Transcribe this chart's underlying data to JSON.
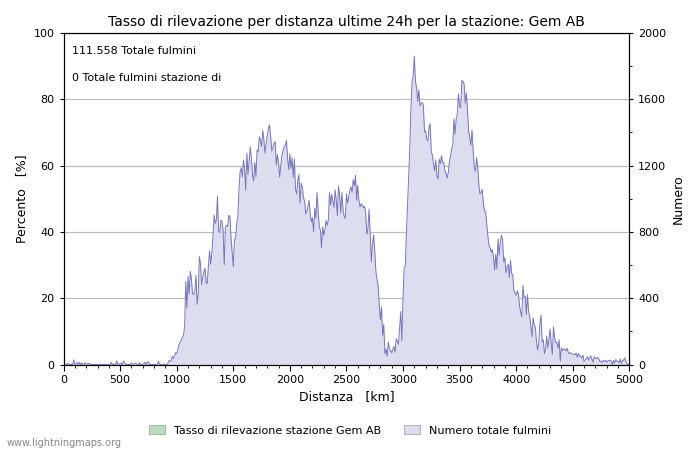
{
  "title": "Tasso di rilevazione per distanza ultime 24h per la stazione: Gem AB",
  "xlabel": "Distanza   [km]",
  "ylabel_left": "Percento   [%]",
  "ylabel_right": "Numero",
  "annotation_line1": "111.558 Totale fulmini",
  "annotation_line2": "0 Totale fulmini stazione di",
  "xlim": [
    0,
    5000
  ],
  "ylim_left": [
    0,
    100
  ],
  "ylim_right": [
    0,
    2000
  ],
  "xticks": [
    0,
    500,
    1000,
    1500,
    2000,
    2500,
    3000,
    3500,
    4000,
    4500,
    5000
  ],
  "yticks_left": [
    0,
    20,
    40,
    60,
    80,
    100
  ],
  "yticks_right": [
    0,
    400,
    800,
    1200,
    1600,
    2000
  ],
  "legend_label_green": "Tasso di rilevazione stazione Gem AB",
  "legend_label_blue": "Numero totale fulmini",
  "watermark": "www.lightningmaps.org",
  "line_color": "#7777bb",
  "fill_color": "#ddddf0",
  "green_fill_color": "#bbddbb",
  "background_color": "#ffffff",
  "grid_color": "#bbbbbb",
  "title_fontsize": 10,
  "axis_fontsize": 9,
  "tick_fontsize": 8,
  "annot_fontsize": 8
}
